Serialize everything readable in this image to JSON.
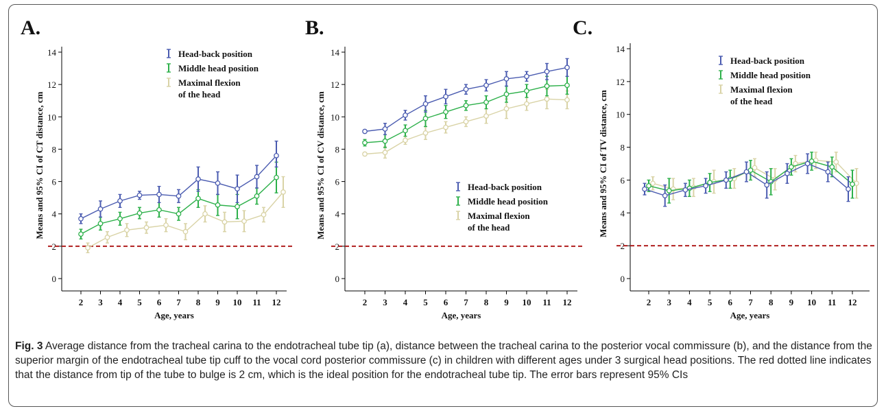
{
  "figure": {
    "caption_label": "Fig. 3",
    "caption_text": " Average distance from the tracheal carina to the endotracheal tube tip (a), distance between the tracheal carina to the posterior vocal commissure (b), and the distance from the superior margin of the endotracheal tube tip cuff to the vocal cord posterior commissure (c) in children with different ages under 3 surgical head positions. The red dotted line indicates that the distance from tip of the tube to bulge is 2 cm, which is the ideal position for the endotracheal tube tip. The error bars represent 95% CIs"
  },
  "colors": {
    "head_back": "#4a5bb0",
    "middle": "#2db04a",
    "flexion": "#d9d3a6",
    "reference_line": "#b01e1e",
    "axis": "#000000"
  },
  "chart_data": [
    {
      "type": "line",
      "panel_label": "A.",
      "xlabel": "Age, years",
      "ylabel": "Means and 95% CI of CT distance, cm",
      "x": [
        2,
        3,
        4,
        5,
        6,
        7,
        8,
        9,
        10,
        11,
        12
      ],
      "ylim": [
        0,
        14
      ],
      "yticks": [
        0,
        2,
        4,
        6,
        8,
        10,
        12,
        14
      ],
      "reference_line": 2,
      "legend_position": "top-right",
      "series": [
        {
          "name": "Head-back position",
          "values": [
            3.7,
            4.3,
            4.8,
            5.15,
            5.2,
            5.1,
            6.15,
            5.9,
            5.55,
            6.3,
            7.6
          ],
          "ci_low": [
            3.4,
            3.8,
            4.4,
            4.9,
            4.7,
            4.7,
            5.4,
            5.2,
            4.7,
            5.6,
            6.9
          ],
          "ci_high": [
            4.0,
            4.8,
            5.2,
            5.4,
            5.7,
            5.5,
            6.9,
            6.6,
            6.4,
            7.0,
            8.5
          ]
        },
        {
          "name": "Middle head position",
          "values": [
            2.75,
            3.4,
            3.7,
            4.05,
            4.25,
            4.0,
            4.95,
            4.55,
            4.45,
            5.1,
            6.25
          ],
          "ci_low": [
            2.45,
            3.0,
            3.3,
            3.7,
            3.8,
            3.6,
            4.4,
            3.9,
            3.7,
            4.6,
            5.3
          ],
          "ci_high": [
            3.05,
            3.8,
            4.1,
            4.4,
            4.7,
            4.4,
            5.5,
            5.2,
            5.2,
            5.6,
            7.2
          ]
        },
        {
          "name": "Maximal flexion of the head",
          "values": [
            1.9,
            2.55,
            3.0,
            3.15,
            3.3,
            2.9,
            4.0,
            3.5,
            3.55,
            3.95,
            5.35
          ],
          "ci_low": [
            1.6,
            2.2,
            2.6,
            2.8,
            2.9,
            2.4,
            3.5,
            2.9,
            2.9,
            3.5,
            4.4
          ],
          "ci_high": [
            2.2,
            2.9,
            3.4,
            3.5,
            3.7,
            3.4,
            4.5,
            4.1,
            4.2,
            4.4,
            6.3
          ]
        }
      ]
    },
    {
      "type": "line",
      "panel_label": "B.",
      "xlabel": "Age, years",
      "ylabel": "Means and 95% CI of CV distance, cm",
      "x": [
        2,
        3,
        4,
        5,
        6,
        7,
        8,
        9,
        10,
        11,
        12
      ],
      "ylim": [
        0,
        14
      ],
      "yticks": [
        0,
        2,
        4,
        6,
        8,
        10,
        12,
        14
      ],
      "reference_line": 2,
      "legend_position": "bottom-right",
      "series": [
        {
          "name": "Head-back position",
          "values": [
            9.1,
            9.25,
            10.1,
            10.8,
            11.25,
            11.7,
            11.95,
            12.35,
            12.5,
            12.8,
            13.05
          ],
          "ci_low": [
            9.0,
            8.9,
            9.8,
            10.3,
            10.8,
            11.4,
            11.6,
            11.9,
            12.2,
            12.3,
            12.5
          ],
          "ci_high": [
            9.2,
            9.6,
            10.4,
            11.3,
            11.7,
            12.0,
            12.3,
            12.8,
            12.8,
            13.3,
            13.6
          ]
        },
        {
          "name": "Middle head position",
          "values": [
            8.4,
            8.5,
            9.15,
            9.9,
            10.3,
            10.7,
            10.9,
            11.4,
            11.6,
            11.9,
            11.95
          ],
          "ci_low": [
            8.2,
            8.1,
            8.8,
            9.4,
            9.9,
            10.4,
            10.5,
            10.9,
            11.2,
            11.3,
            11.4
          ],
          "ci_high": [
            8.6,
            8.9,
            9.5,
            10.4,
            10.7,
            11.0,
            11.3,
            11.9,
            12.0,
            12.5,
            12.5
          ]
        },
        {
          "name": "Maximal flexion of the head",
          "values": [
            7.7,
            7.8,
            8.55,
            9.0,
            9.35,
            9.7,
            10.05,
            10.5,
            10.8,
            11.1,
            11.05
          ],
          "ci_low": [
            7.6,
            7.45,
            8.3,
            8.6,
            9.0,
            9.4,
            9.6,
            9.9,
            10.4,
            10.5,
            10.5
          ],
          "ci_high": [
            7.8,
            8.15,
            8.8,
            9.4,
            9.7,
            10.0,
            10.5,
            11.1,
            11.2,
            11.7,
            11.6
          ]
        }
      ]
    },
    {
      "type": "line",
      "panel_label": "C.",
      "xlabel": "Age, years",
      "ylabel": "Means and 95% CI of TV distance, cm",
      "x": [
        2,
        3,
        4,
        5,
        6,
        7,
        8,
        9,
        10,
        11,
        12
      ],
      "ylim": [
        0,
        14
      ],
      "yticks": [
        0,
        2,
        4,
        6,
        8,
        10,
        12,
        14
      ],
      "reference_line": 2,
      "legend_position": "top-right",
      "series": [
        {
          "name": "Head-back position",
          "values": [
            5.45,
            5.05,
            5.4,
            5.65,
            6.0,
            6.5,
            5.7,
            6.4,
            7.0,
            6.5,
            5.45
          ],
          "ci_low": [
            5.1,
            4.4,
            5.0,
            5.2,
            5.5,
            5.9,
            4.9,
            5.8,
            6.4,
            5.9,
            4.7
          ],
          "ci_high": [
            5.8,
            5.7,
            5.8,
            6.1,
            6.5,
            7.1,
            6.5,
            7.0,
            7.6,
            7.1,
            6.2
          ]
        },
        {
          "name": "Middle head position",
          "values": [
            5.65,
            5.35,
            5.5,
            5.85,
            6.05,
            6.6,
            5.9,
            6.8,
            7.15,
            6.8,
            5.75
          ],
          "ci_low": [
            5.3,
            4.6,
            5.0,
            5.3,
            5.5,
            6.0,
            5.1,
            6.3,
            6.6,
            6.2,
            4.9
          ],
          "ci_high": [
            6.0,
            6.1,
            6.0,
            6.4,
            6.6,
            7.2,
            6.7,
            7.3,
            7.7,
            7.4,
            6.6
          ]
        },
        {
          "name": "Maximal flexion of the head",
          "values": [
            5.8,
            5.45,
            5.55,
            5.9,
            6.1,
            6.75,
            6.05,
            7.0,
            7.2,
            7.1,
            5.8
          ],
          "ci_low": [
            5.4,
            4.8,
            5.0,
            5.2,
            5.5,
            6.2,
            5.4,
            6.5,
            6.7,
            6.5,
            4.9
          ],
          "ci_high": [
            6.2,
            6.1,
            6.1,
            6.6,
            6.7,
            7.3,
            6.7,
            7.5,
            7.7,
            7.7,
            6.7
          ]
        }
      ]
    }
  ]
}
